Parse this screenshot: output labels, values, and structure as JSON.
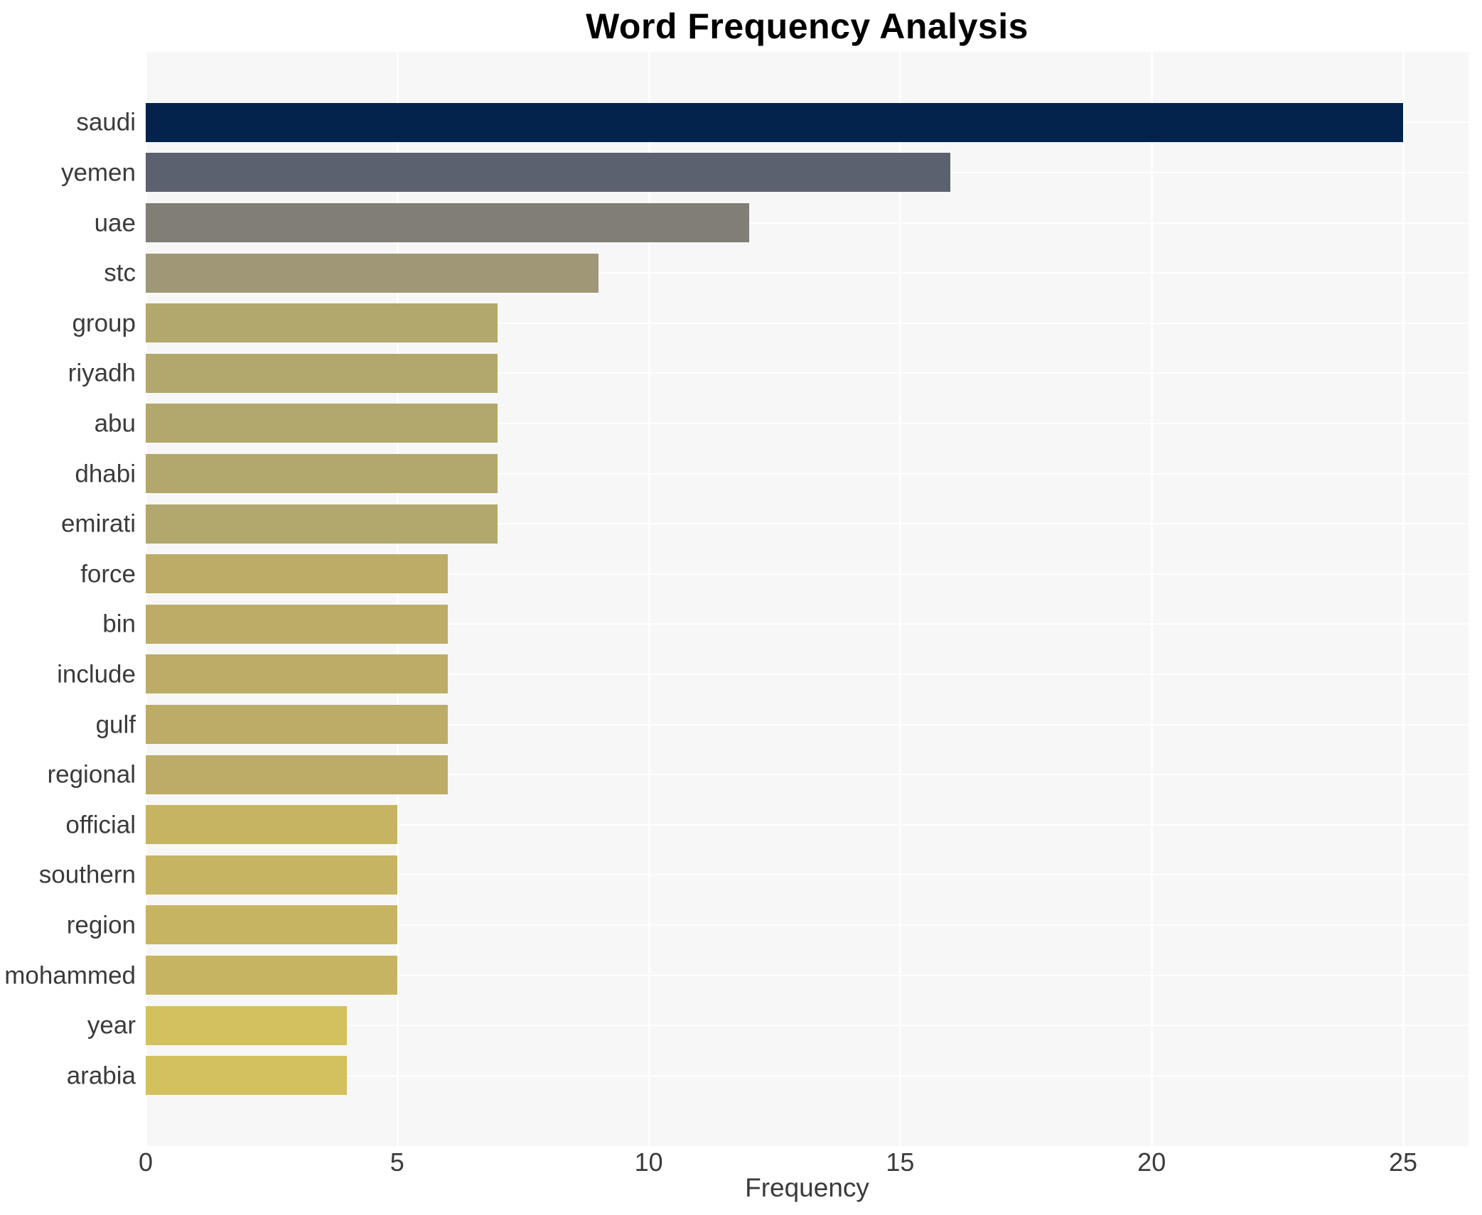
{
  "chart_data": {
    "type": "bar",
    "orientation": "horizontal",
    "title": "Word Frequency Analysis",
    "xlabel": "Frequency",
    "ylabel": "",
    "categories": [
      "saudi",
      "yemen",
      "uae",
      "stc",
      "group",
      "riyadh",
      "abu",
      "dhabi",
      "emirati",
      "force",
      "bin",
      "include",
      "gulf",
      "regional",
      "official",
      "southern",
      "region",
      "mohammed",
      "year",
      "arabia"
    ],
    "values": [
      25,
      16,
      12,
      9,
      7,
      7,
      7,
      7,
      7,
      6,
      6,
      6,
      6,
      6,
      5,
      5,
      5,
      5,
      4,
      4
    ],
    "bar_colors": [
      "#03234d",
      "#5c6170",
      "#807e75",
      "#9f9775",
      "#b2a76c",
      "#b2a76c",
      "#b2a76c",
      "#b2a76c",
      "#b2a76c",
      "#bdac68",
      "#bdac68",
      "#bdac68",
      "#bdac68",
      "#bdac68",
      "#c7b462",
      "#c7b462",
      "#c7b462",
      "#c7b462",
      "#d3c15f",
      "#d3c15f"
    ],
    "xticks": [
      "0",
      "5",
      "10",
      "15",
      "20",
      "25"
    ],
    "xtick_values": [
      0,
      5,
      10,
      15,
      20,
      25
    ],
    "xlim": [
      0,
      26.3
    ],
    "grid": true,
    "legend_position": "none",
    "colors": {
      "plot_background": "#f6f7f6",
      "gridline": "#ffffff",
      "tick_text": "#3b3b3b",
      "label_text": "#3b3b3b",
      "title_text": "#000000",
      "page_background": "#ffffff"
    }
  }
}
